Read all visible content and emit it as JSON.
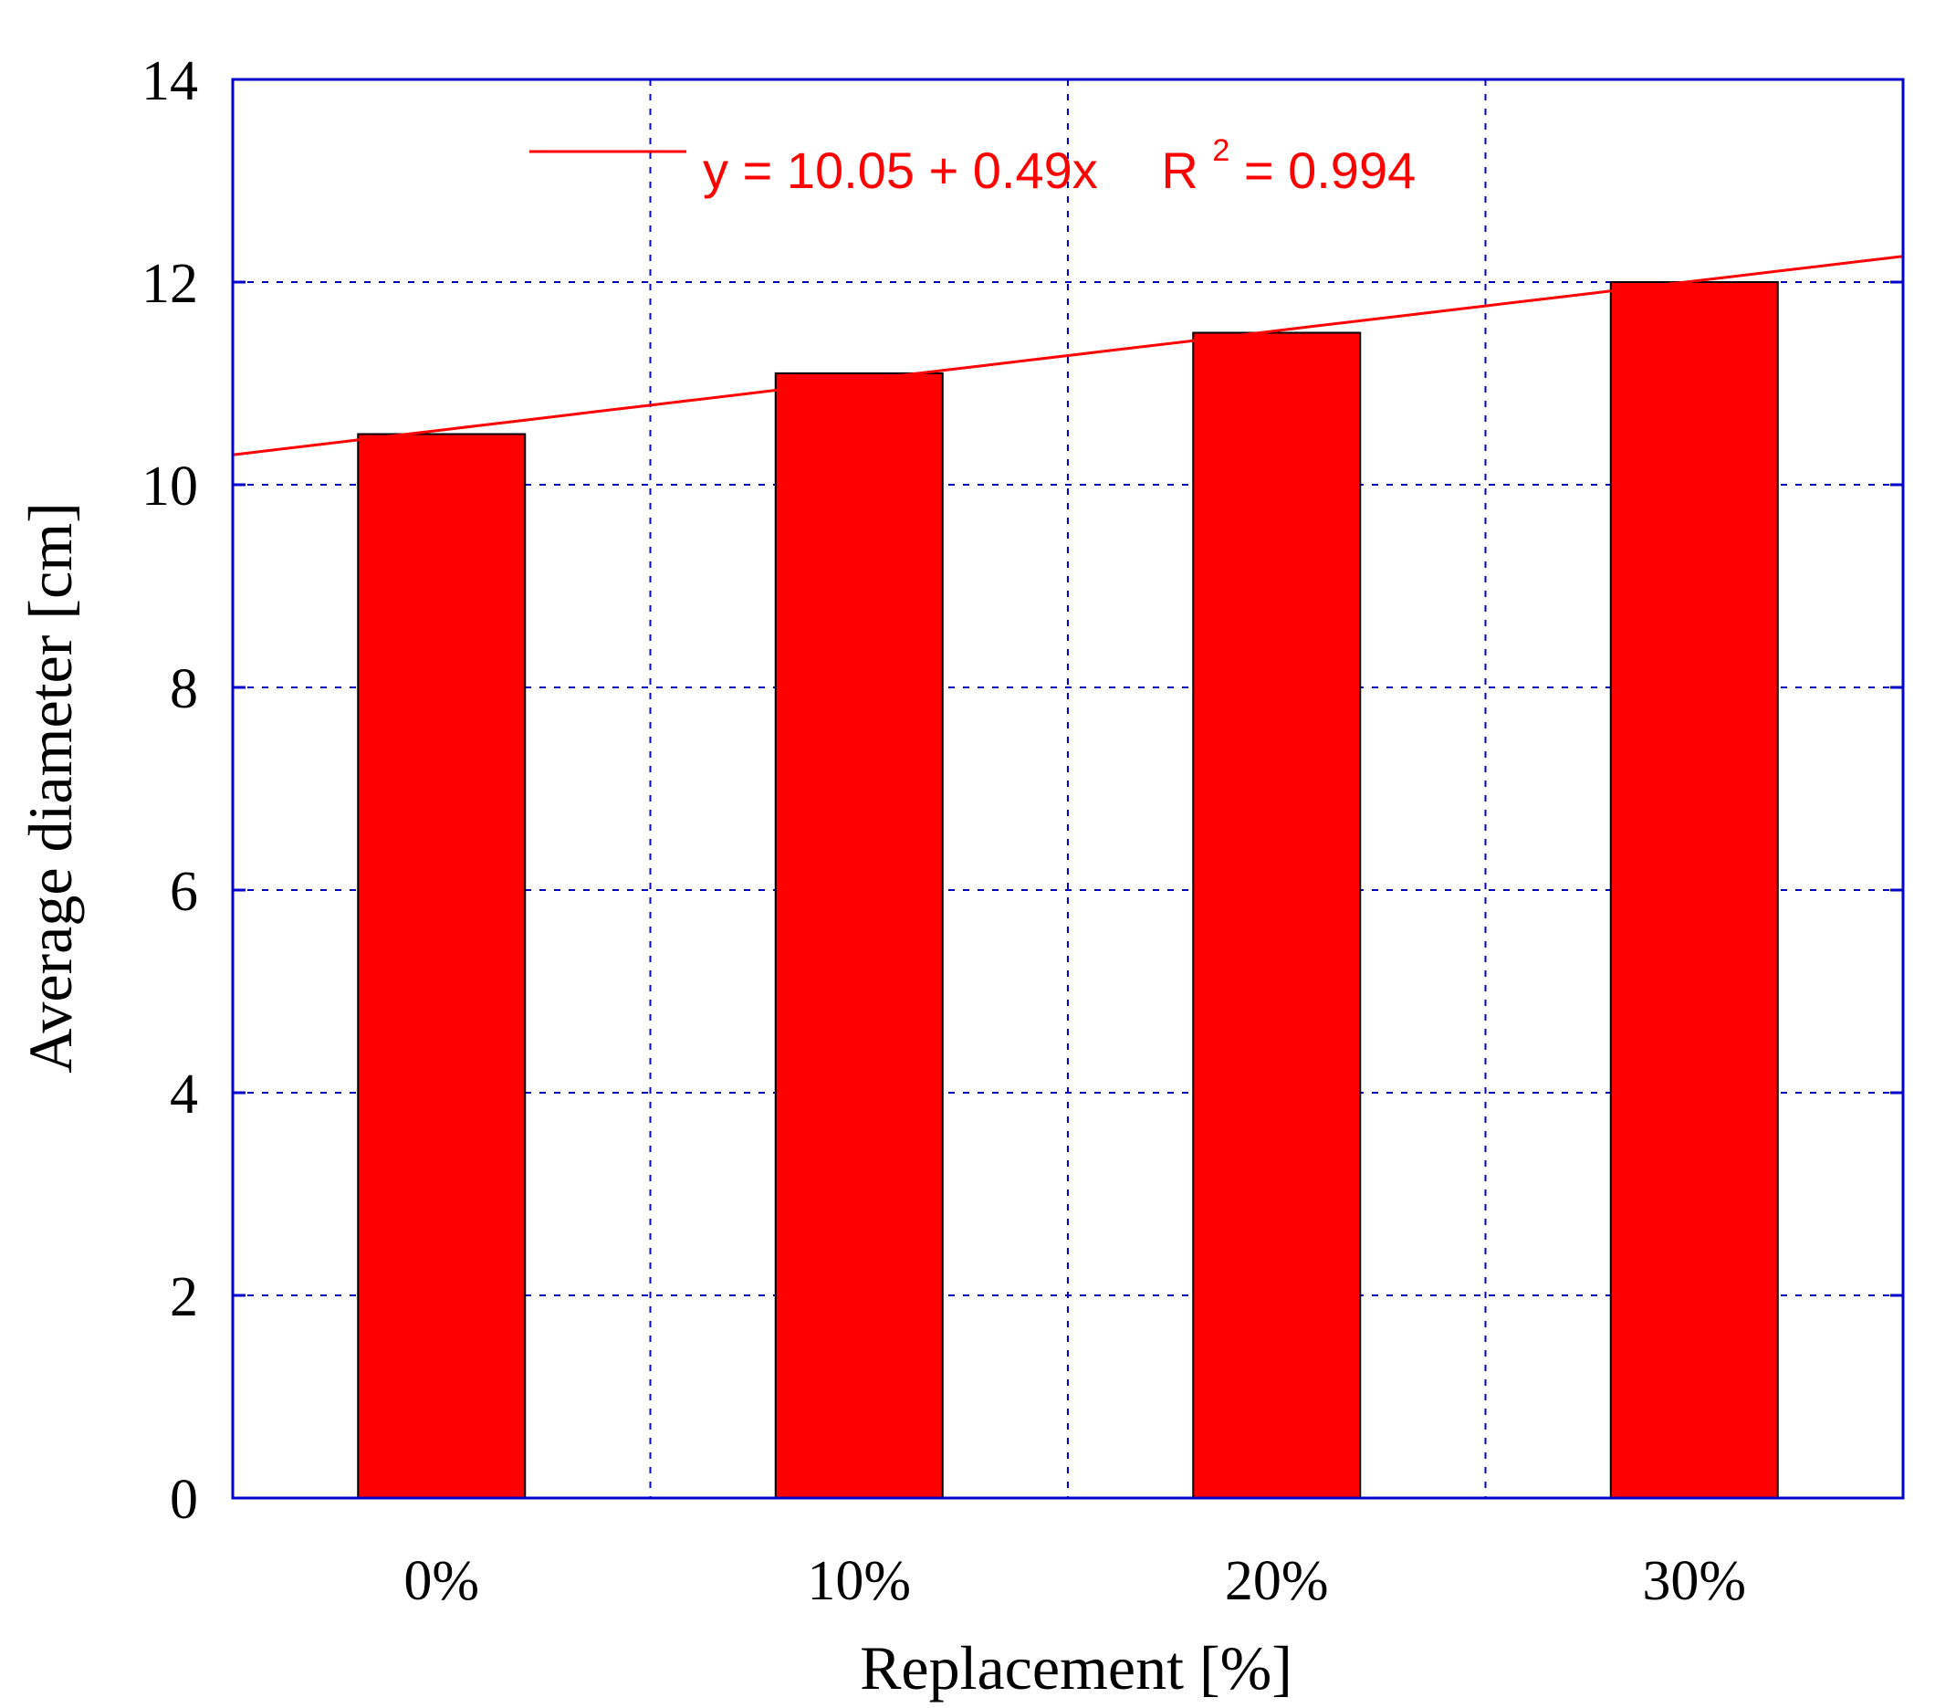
{
  "chart_data": {
    "type": "bar",
    "title": "",
    "xlabel": "Replacement [%]",
    "ylabel": "Average diameter [cm]",
    "categories": [
      "0%",
      "10%",
      "20%",
      "30%"
    ],
    "series": [
      {
        "name": "Average diameter",
        "values": [
          10.5,
          11.1,
          11.5,
          12.0
        ],
        "color": "#ff0000"
      }
    ],
    "ylim": [
      0,
      14
    ],
    "yticks": [
      0,
      2,
      4,
      6,
      8,
      10,
      12,
      14
    ],
    "grid": true,
    "grid_color": "#0000cc",
    "frame_color": "#0000cc",
    "trendline": {
      "intercept": 10.05,
      "slope": 0.49,
      "color": "#ff0000",
      "x_start": 0.5,
      "x_end": 4.5
    },
    "legend": {
      "position": "top-center",
      "equation_text": "y = 10.05 + 0.49x",
      "r2_prefix": "R",
      "r2_superscript": "2",
      "r2_suffix": "= 0.994"
    }
  }
}
